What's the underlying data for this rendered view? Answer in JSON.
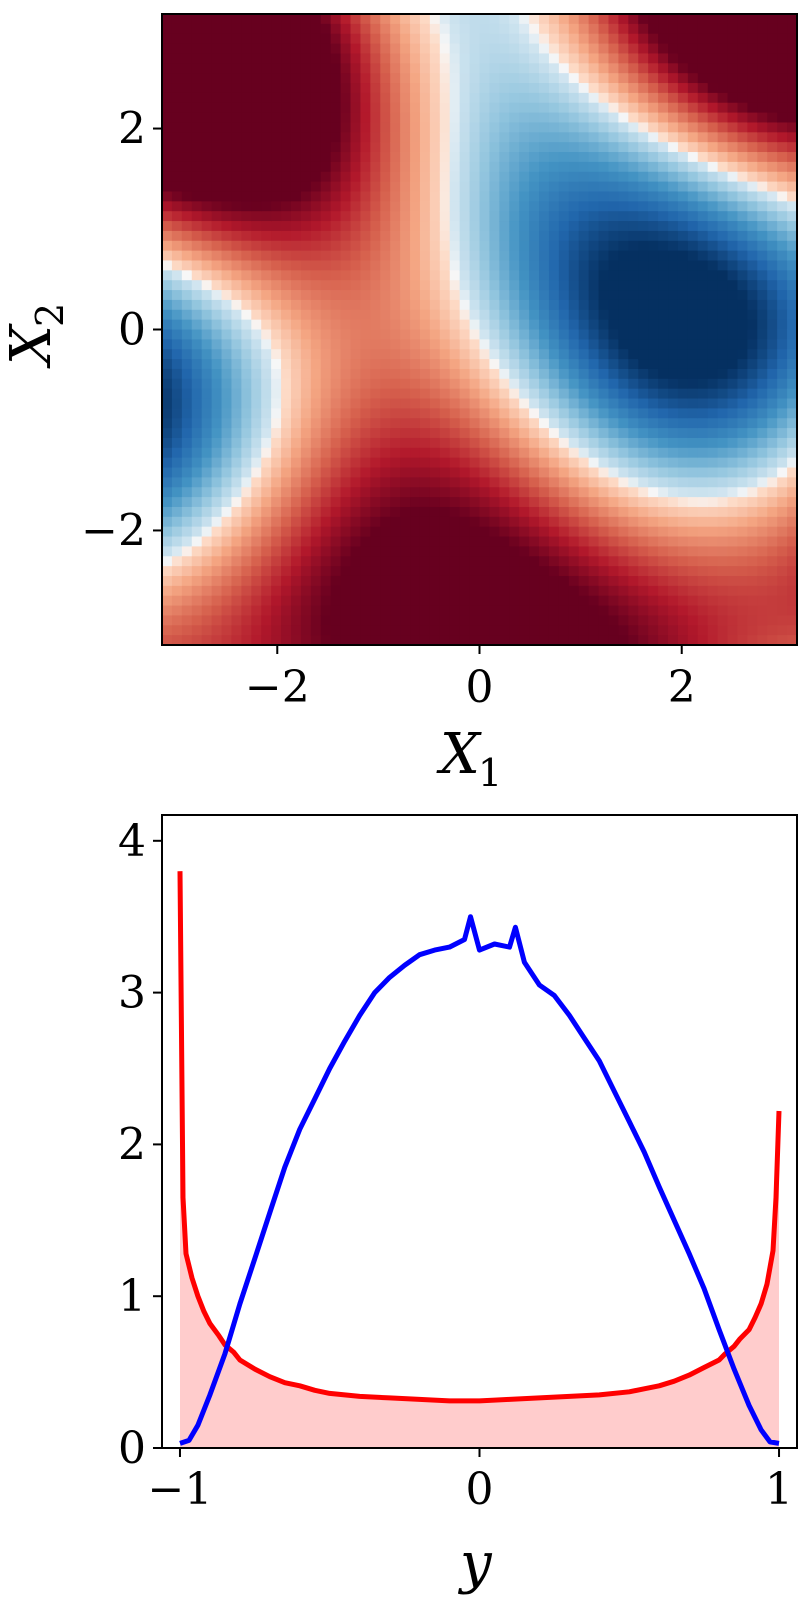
{
  "chart_data": [
    {
      "type": "heatmap",
      "xlabel": "X",
      "xlabel_sub": "1",
      "ylabel": "X",
      "ylabel_sub": "2",
      "xlim": [
        -3.14,
        3.14
      ],
      "ylim": [
        -3.14,
        3.14
      ],
      "xticks": [
        -2,
        0,
        2
      ],
      "yticks": [
        -2,
        0,
        2
      ],
      "xtick_labels": [
        "−2",
        "0",
        "2"
      ],
      "ytick_labels": [
        "−2",
        "0",
        "2"
      ],
      "colormap": "RdBu",
      "colors": {
        "low": "#67001f",
        "mid": "#f7f7f7",
        "high": "#053061"
      }
    },
    {
      "type": "line",
      "xlabel": "y",
      "ylabel": "",
      "xlim": [
        -1.06,
        1.06
      ],
      "ylim": [
        0,
        4.17
      ],
      "xticks": [
        -1,
        0,
        1
      ],
      "yticks": [
        0,
        1,
        2,
        3,
        4
      ],
      "xtick_labels": [
        "−1",
        "0",
        "1"
      ],
      "ytick_labels": [
        "0",
        "1",
        "2",
        "3",
        "4"
      ],
      "series": [
        {
          "color": "#ff0000",
          "fill": "#ffcccc",
          "x": [
            -1.0,
            -0.99,
            -0.98,
            -0.96,
            -0.94,
            -0.92,
            -0.9,
            -0.87,
            -0.85,
            -0.82,
            -0.8,
            -0.75,
            -0.7,
            -0.65,
            -0.6,
            -0.55,
            -0.5,
            -0.4,
            -0.3,
            -0.2,
            -0.1,
            0.0,
            0.1,
            0.2,
            0.3,
            0.4,
            0.5,
            0.55,
            0.6,
            0.65,
            0.7,
            0.75,
            0.8,
            0.82,
            0.85,
            0.87,
            0.9,
            0.92,
            0.94,
            0.96,
            0.98,
            0.99,
            1.0
          ],
          "y": [
            3.8,
            1.65,
            1.28,
            1.12,
            1.0,
            0.9,
            0.82,
            0.74,
            0.68,
            0.63,
            0.58,
            0.52,
            0.47,
            0.43,
            0.41,
            0.38,
            0.36,
            0.34,
            0.33,
            0.32,
            0.31,
            0.31,
            0.32,
            0.33,
            0.34,
            0.35,
            0.37,
            0.39,
            0.41,
            0.44,
            0.48,
            0.53,
            0.58,
            0.62,
            0.67,
            0.72,
            0.78,
            0.86,
            0.95,
            1.08,
            1.3,
            1.65,
            2.22
          ]
        },
        {
          "color": "#0000ff",
          "x": [
            -1.0,
            -0.97,
            -0.94,
            -0.9,
            -0.85,
            -0.8,
            -0.75,
            -0.7,
            -0.65,
            -0.6,
            -0.55,
            -0.5,
            -0.45,
            -0.4,
            -0.35,
            -0.3,
            -0.25,
            -0.2,
            -0.15,
            -0.1,
            -0.05,
            -0.03,
            0.0,
            0.05,
            0.1,
            0.12,
            0.15,
            0.2,
            0.25,
            0.3,
            0.35,
            0.4,
            0.45,
            0.5,
            0.55,
            0.6,
            0.65,
            0.7,
            0.75,
            0.8,
            0.85,
            0.9,
            0.94,
            0.97,
            1.0
          ],
          "y": [
            0.03,
            0.05,
            0.15,
            0.35,
            0.62,
            0.95,
            1.25,
            1.55,
            1.85,
            2.1,
            2.3,
            2.5,
            2.68,
            2.85,
            3.0,
            3.1,
            3.18,
            3.25,
            3.28,
            3.3,
            3.35,
            3.5,
            3.28,
            3.32,
            3.3,
            3.43,
            3.2,
            3.05,
            2.98,
            2.85,
            2.7,
            2.55,
            2.35,
            2.15,
            1.95,
            1.72,
            1.5,
            1.28,
            1.05,
            0.78,
            0.52,
            0.28,
            0.12,
            0.04,
            0.03
          ]
        }
      ]
    }
  ]
}
